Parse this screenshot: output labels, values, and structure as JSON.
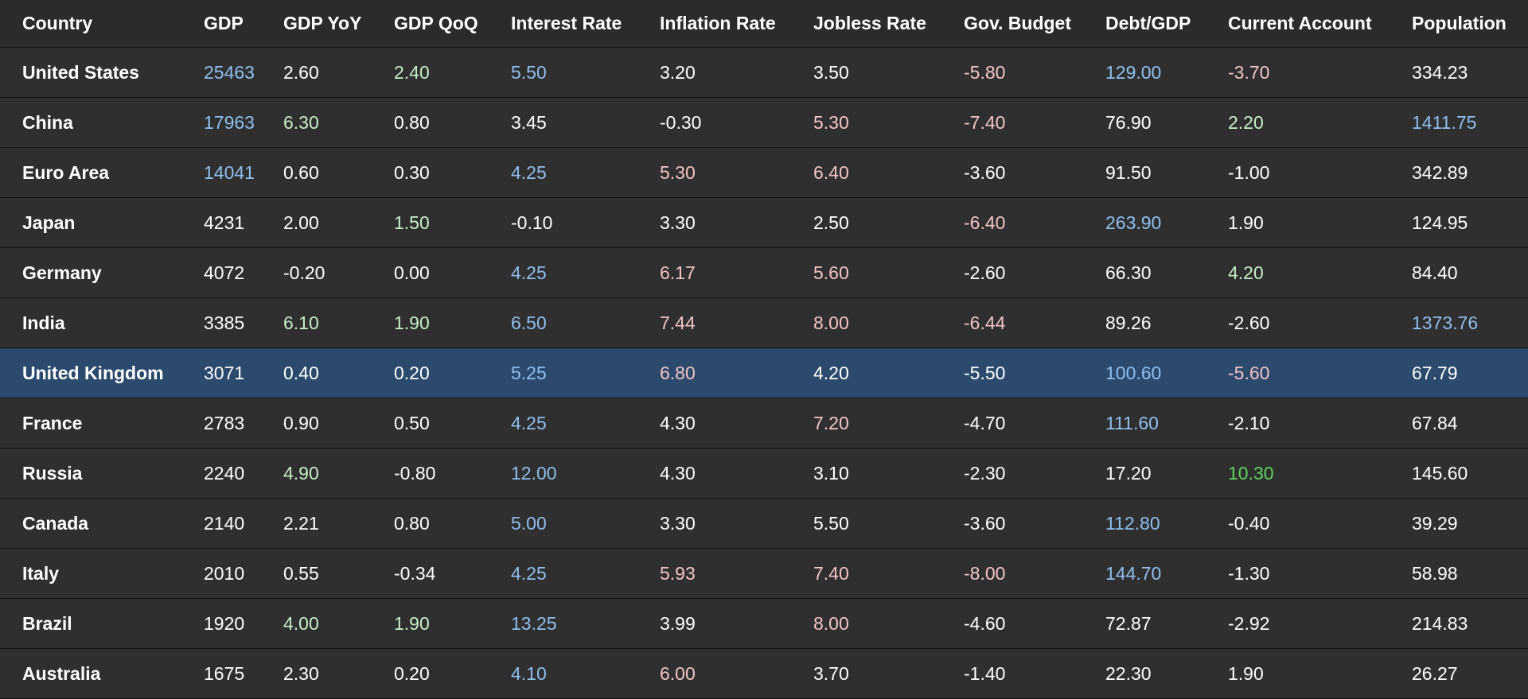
{
  "colors": {
    "background": "#2f2f2f",
    "header_background": "#2b2b2b",
    "row_border": "#121212",
    "selected_row": "#2c4a6e",
    "default": "#ffffff",
    "blue": "#8fbfef",
    "green": "#c6efc6",
    "strong_green": "#5fd35f",
    "red": "#f4c4c4"
  },
  "headers": [
    "Country",
    "GDP",
    "GDP YoY",
    "GDP QoQ",
    "Interest Rate",
    "Inflation Rate",
    "Jobless Rate",
    "Gov. Budget",
    "Debt/GDP",
    "Current Account",
    "Population"
  ],
  "selected_row_index": 6,
  "rows": [
    {
      "cells": [
        "United States",
        "25463",
        "2.60",
        "2.40",
        "5.50",
        "3.20",
        "3.50",
        "-5.80",
        "129.00",
        "-3.70",
        "334.23"
      ],
      "tones": [
        "default",
        "blue",
        "default",
        "green",
        "blue",
        "default",
        "default",
        "red",
        "blue",
        "red",
        "default"
      ]
    },
    {
      "cells": [
        "China",
        "17963",
        "6.30",
        "0.80",
        "3.45",
        "-0.30",
        "5.30",
        "-7.40",
        "76.90",
        "2.20",
        "1411.75"
      ],
      "tones": [
        "default",
        "blue",
        "green",
        "default",
        "default",
        "default",
        "red",
        "red",
        "default",
        "green",
        "blue"
      ]
    },
    {
      "cells": [
        "Euro Area",
        "14041",
        "0.60",
        "0.30",
        "4.25",
        "5.30",
        "6.40",
        "-3.60",
        "91.50",
        "-1.00",
        "342.89"
      ],
      "tones": [
        "default",
        "blue",
        "default",
        "default",
        "blue",
        "red",
        "red",
        "default",
        "default",
        "default",
        "default"
      ]
    },
    {
      "cells": [
        "Japan",
        "4231",
        "2.00",
        "1.50",
        "-0.10",
        "3.30",
        "2.50",
        "-6.40",
        "263.90",
        "1.90",
        "124.95"
      ],
      "tones": [
        "default",
        "default",
        "default",
        "green",
        "default",
        "default",
        "default",
        "red",
        "blue",
        "default",
        "default"
      ]
    },
    {
      "cells": [
        "Germany",
        "4072",
        "-0.20",
        "0.00",
        "4.25",
        "6.17",
        "5.60",
        "-2.60",
        "66.30",
        "4.20",
        "84.40"
      ],
      "tones": [
        "default",
        "default",
        "default",
        "default",
        "blue",
        "red",
        "red",
        "default",
        "default",
        "green",
        "default"
      ]
    },
    {
      "cells": [
        "India",
        "3385",
        "6.10",
        "1.90",
        "6.50",
        "7.44",
        "8.00",
        "-6.44",
        "89.26",
        "-2.60",
        "1373.76"
      ],
      "tones": [
        "default",
        "default",
        "green",
        "green",
        "blue",
        "red",
        "red",
        "red",
        "default",
        "default",
        "blue"
      ]
    },
    {
      "cells": [
        "United Kingdom",
        "3071",
        "0.40",
        "0.20",
        "5.25",
        "6.80",
        "4.20",
        "-5.50",
        "100.60",
        "-5.60",
        "67.79"
      ],
      "tones": [
        "default",
        "default",
        "default",
        "default",
        "blue",
        "red",
        "default",
        "default",
        "blue",
        "red",
        "default"
      ]
    },
    {
      "cells": [
        "France",
        "2783",
        "0.90",
        "0.50",
        "4.25",
        "4.30",
        "7.20",
        "-4.70",
        "111.60",
        "-2.10",
        "67.84"
      ],
      "tones": [
        "default",
        "default",
        "default",
        "default",
        "blue",
        "default",
        "red",
        "default",
        "blue",
        "default",
        "default"
      ]
    },
    {
      "cells": [
        "Russia",
        "2240",
        "4.90",
        "-0.80",
        "12.00",
        "4.30",
        "3.10",
        "-2.30",
        "17.20",
        "10.30",
        "145.60"
      ],
      "tones": [
        "default",
        "default",
        "green",
        "default",
        "blue",
        "default",
        "default",
        "default",
        "default",
        "strong_green",
        "default"
      ]
    },
    {
      "cells": [
        "Canada",
        "2140",
        "2.21",
        "0.80",
        "5.00",
        "3.30",
        "5.50",
        "-3.60",
        "112.80",
        "-0.40",
        "39.29"
      ],
      "tones": [
        "default",
        "default",
        "default",
        "default",
        "blue",
        "default",
        "default",
        "default",
        "blue",
        "default",
        "default"
      ]
    },
    {
      "cells": [
        "Italy",
        "2010",
        "0.55",
        "-0.34",
        "4.25",
        "5.93",
        "7.40",
        "-8.00",
        "144.70",
        "-1.30",
        "58.98"
      ],
      "tones": [
        "default",
        "default",
        "default",
        "default",
        "blue",
        "red",
        "red",
        "red",
        "blue",
        "default",
        "default"
      ]
    },
    {
      "cells": [
        "Brazil",
        "1920",
        "4.00",
        "1.90",
        "13.25",
        "3.99",
        "8.00",
        "-4.60",
        "72.87",
        "-2.92",
        "214.83"
      ],
      "tones": [
        "default",
        "default",
        "green",
        "green",
        "blue",
        "default",
        "red",
        "default",
        "default",
        "default",
        "default"
      ]
    },
    {
      "cells": [
        "Australia",
        "1675",
        "2.30",
        "0.20",
        "4.10",
        "6.00",
        "3.70",
        "-1.40",
        "22.30",
        "1.90",
        "26.27"
      ],
      "tones": [
        "default",
        "default",
        "default",
        "default",
        "blue",
        "red",
        "default",
        "default",
        "default",
        "default",
        "default"
      ]
    }
  ]
}
